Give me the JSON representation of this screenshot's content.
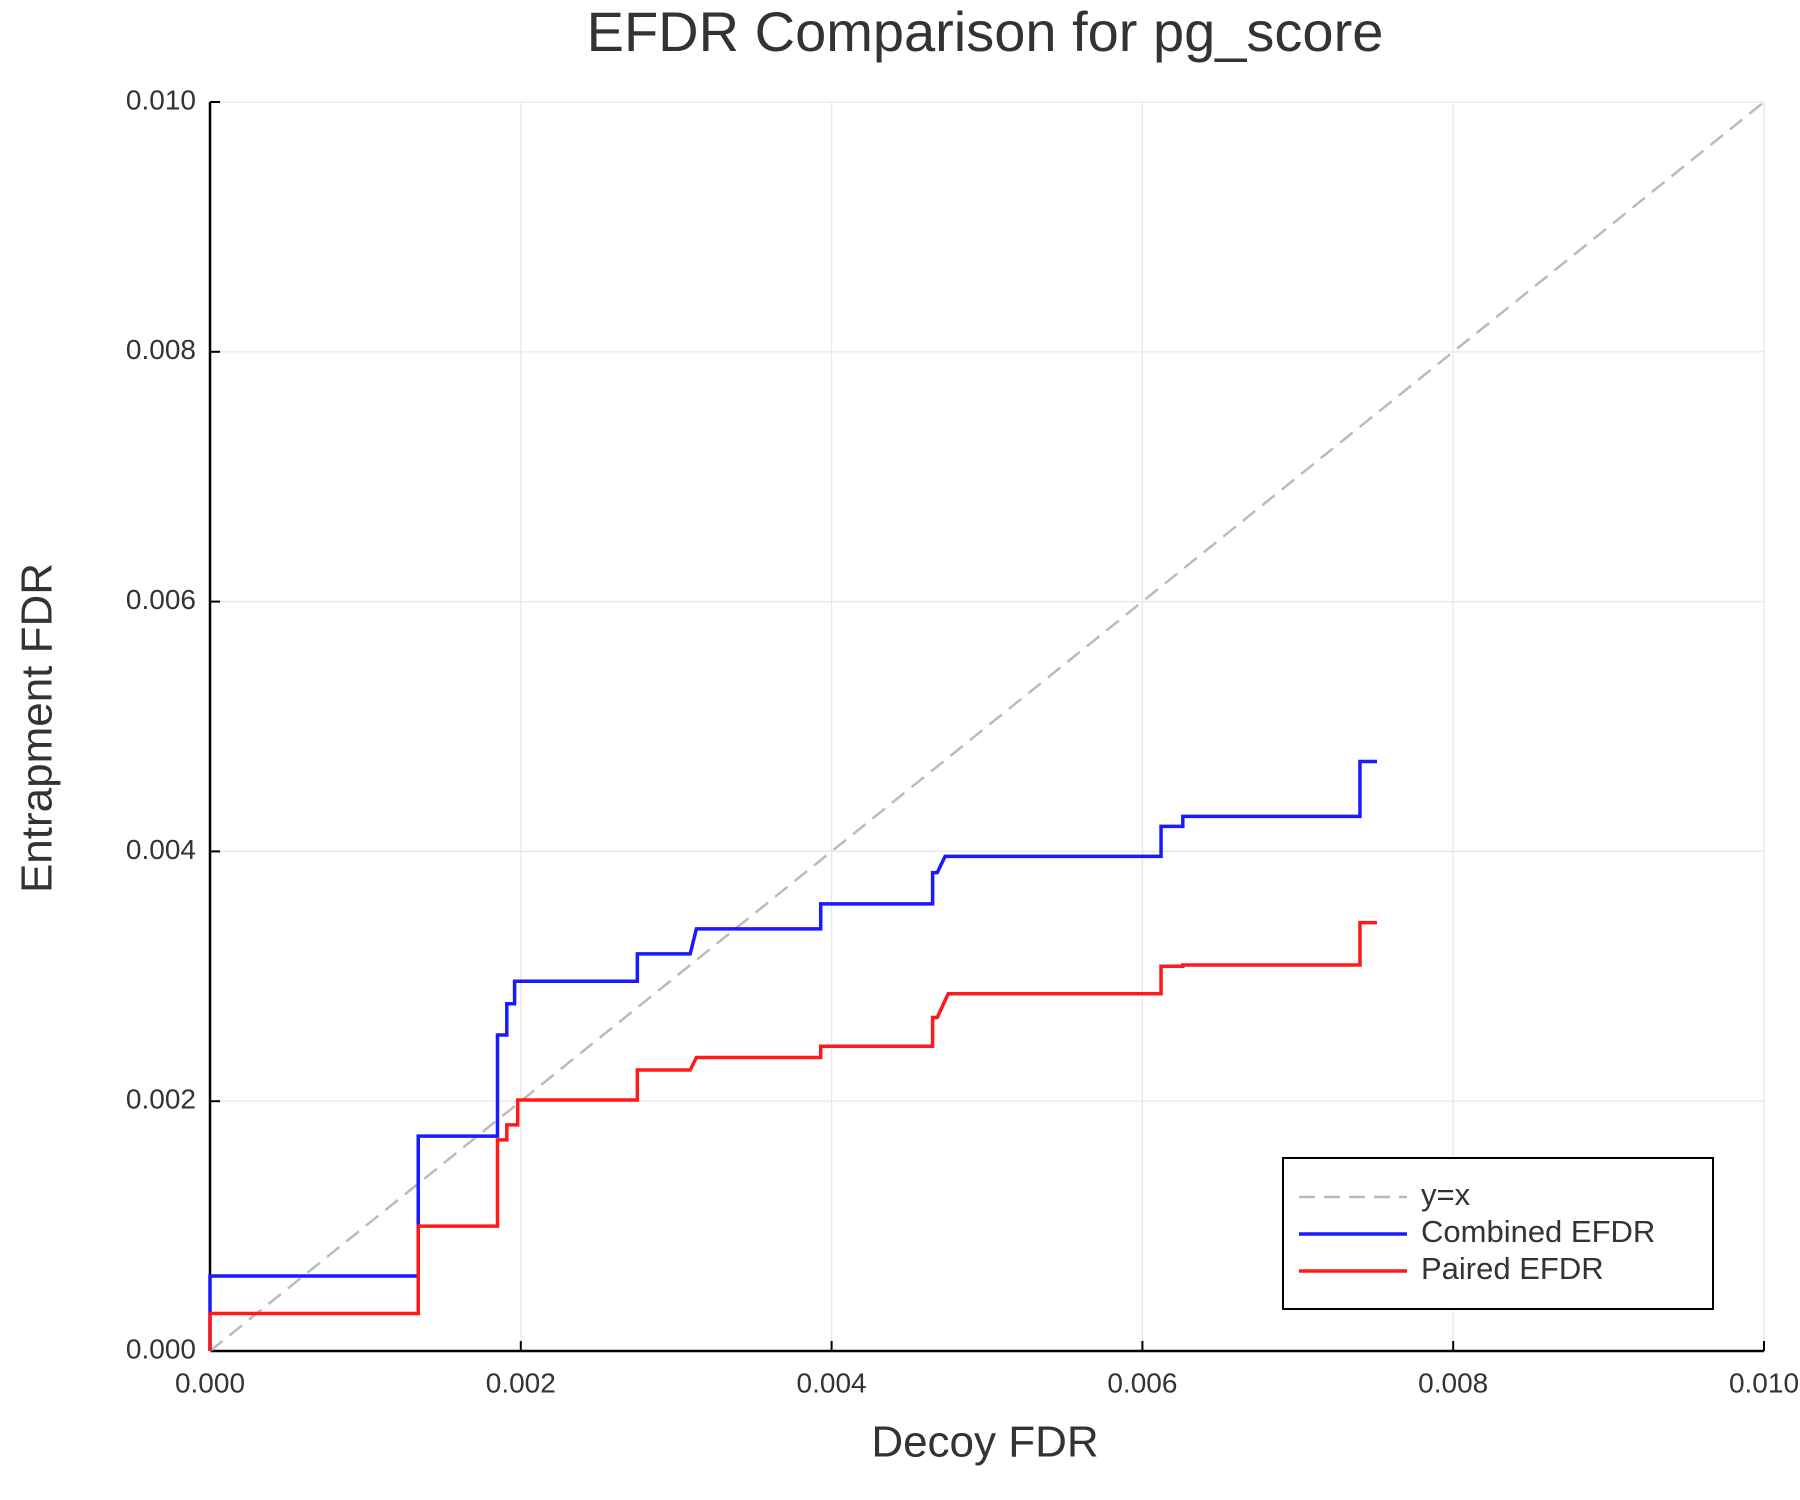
{
  "chart_data": {
    "type": "line",
    "title": "EFDR Comparison for pg_score",
    "x_label": "Decoy FDR",
    "y_label": "Entrapment FDR",
    "xlim": [
      0,
      0.01
    ],
    "ylim": [
      0,
      0.01
    ],
    "xticks": [
      {
        "value": 0,
        "label": "0.000"
      },
      {
        "value": 0.002,
        "label": "0.002"
      },
      {
        "value": 0.004,
        "label": "0.004"
      },
      {
        "value": 0.006,
        "label": "0.006"
      },
      {
        "value": 0.008,
        "label": "0.008"
      },
      {
        "value": 0.01,
        "label": "0.010"
      }
    ],
    "yticks": [
      {
        "value": 0,
        "label": "0.000"
      },
      {
        "value": 0.002,
        "label": "0.002"
      },
      {
        "value": 0.004,
        "label": "0.004"
      },
      {
        "value": 0.006,
        "label": "0.006"
      },
      {
        "value": 0.008,
        "label": "0.008"
      },
      {
        "value": 0.01,
        "label": "0.010"
      }
    ],
    "grid": true,
    "legend": "bottom right",
    "series": [
      {
        "name": "y=x",
        "color": "#bbbbbb",
        "dashed": true,
        "x": [
          0,
          0.01
        ],
        "values": [
          0,
          0.01
        ]
      },
      {
        "name": "Combined EFDR",
        "color": "#1a1aff",
        "dashed": false,
        "x": [
          0,
          0,
          0.00134,
          0.00134,
          0.00185,
          0.00185,
          0.00191,
          0.00191,
          0.00196,
          0.00196,
          0.00275,
          0.00275,
          0.00309,
          0.00313,
          0.00393,
          0.00393,
          0.00465,
          0.00465,
          0.00468,
          0.00473,
          0.00612,
          0.00612,
          0.00626,
          0.00626,
          0.0074,
          0.0074,
          0.00751
        ],
        "values": [
          0,
          0.0006,
          0.0006,
          0.00172,
          0.00172,
          0.00253,
          0.00253,
          0.00278,
          0.00278,
          0.00296,
          0.00296,
          0.00318,
          0.00318,
          0.00338,
          0.00338,
          0.00358,
          0.00358,
          0.00383,
          0.00383,
          0.00396,
          0.00396,
          0.0042,
          0.0042,
          0.00428,
          0.00428,
          0.00472,
          0.00472
        ]
      },
      {
        "name": "Paired EFDR",
        "color": "#ff1a1a",
        "dashed": false,
        "x": [
          0,
          0,
          0.00134,
          0.00134,
          0.00185,
          0.00185,
          0.00191,
          0.00191,
          0.00198,
          0.00198,
          0.00275,
          0.00275,
          0.00309,
          0.00313,
          0.00393,
          0.00393,
          0.00465,
          0.00465,
          0.00468,
          0.00475,
          0.00612,
          0.00612,
          0.00626,
          0.00626,
          0.0074,
          0.0074,
          0.00751
        ],
        "values": [
          0,
          0.0003,
          0.0003,
          0.001,
          0.001,
          0.00169,
          0.00169,
          0.00181,
          0.00181,
          0.00201,
          0.00201,
          0.00225,
          0.00225,
          0.00235,
          0.00235,
          0.00244,
          0.00244,
          0.00267,
          0.00267,
          0.00286,
          0.00286,
          0.00308,
          0.00308,
          0.00309,
          0.00309,
          0.00343,
          0.00343
        ]
      }
    ]
  }
}
